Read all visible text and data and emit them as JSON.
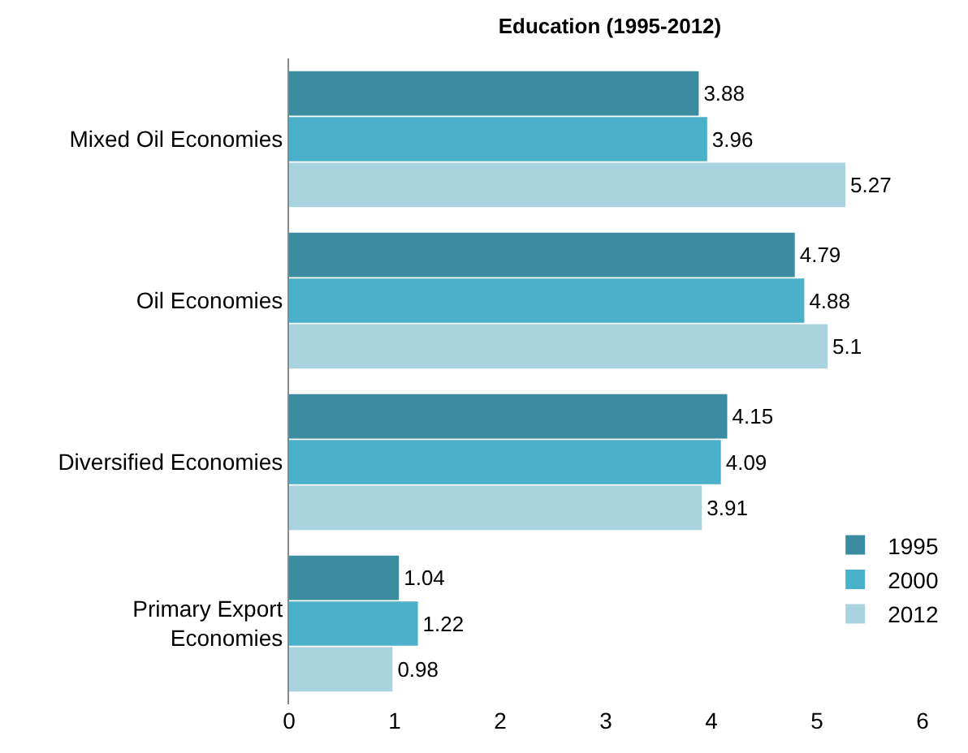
{
  "chart_data": {
    "type": "bar",
    "title": "Education (1995-2012)",
    "orientation": "horizontal",
    "categories": [
      "Mixed Oil Economies",
      "Oil Economies",
      "Diversified Economies",
      "Primary Export Economies"
    ],
    "series": [
      {
        "name": "1995",
        "color": "#3b8ca1",
        "values": [
          3.88,
          4.79,
          4.15,
          1.04
        ]
      },
      {
        "name": "2000",
        "color": "#4bb0c9",
        "values": [
          3.96,
          4.88,
          4.09,
          1.22
        ]
      },
      {
        "name": "2012",
        "color": "#a9d3df",
        "values": [
          5.27,
          5.1,
          3.91,
          0.98
        ]
      }
    ],
    "xlim": [
      0,
      6
    ],
    "xticks": [
      0,
      1,
      2,
      3,
      4,
      5,
      6
    ],
    "data_labels": true,
    "grid": false,
    "legend": "bottom right"
  }
}
